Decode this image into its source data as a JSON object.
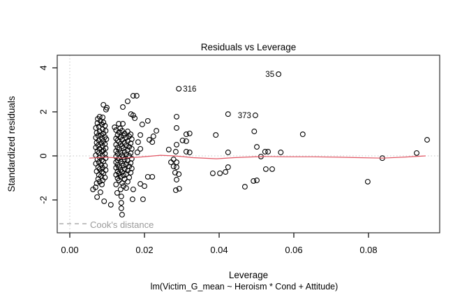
{
  "figure": {
    "title": "Residuals vs Leverage",
    "xlabel": "Leverage",
    "ylabel": "Standardized residuals",
    "sub_caption": "lm(Victim_G_mean ~ Heroism * Cond + Attitude)",
    "legend": {
      "label": "Cook's distance",
      "line_style": "dashed"
    }
  },
  "colors": {
    "background": "#ffffff",
    "box": "#2b2b2b",
    "point_stroke": "#000000",
    "smoother": "#e25563",
    "reference_dotted": "#c4c4c4",
    "legend_gray": "#9a9a9a",
    "text": "#000000"
  },
  "chart_data": {
    "type": "scatter",
    "title": "Residuals vs Leverage",
    "xlabel": "Leverage",
    "ylabel": "Standardized residuals",
    "sub_caption": "lm(Victim_G_mean ~ Heroism * Cond + Attitude)",
    "xlim": [
      -0.0034,
      0.0991
    ],
    "ylim": [
      -3.49,
      4.57
    ],
    "x_ticks": [
      "0.00",
      "0.02",
      "0.04",
      "0.06",
      "0.08"
    ],
    "x_tick_values": [
      0.0,
      0.02,
      0.04,
      0.06,
      0.08
    ],
    "y_ticks": [
      "-2",
      "0",
      "2",
      "4"
    ],
    "y_tick_values": [
      -2,
      0,
      2,
      4
    ],
    "grid": false,
    "legend_position": "bottom-left-inside",
    "reference_lines": {
      "vertical_at_x": 0,
      "horizontal_at_y": 0,
      "style": "dotted"
    },
    "labeled_points": [
      {
        "label": "35",
        "x": 0.0559,
        "y": 3.71,
        "label_side": "left"
      },
      {
        "label": "316",
        "x": 0.0292,
        "y": 3.05,
        "label_side": "right"
      },
      {
        "label": "373",
        "x": 0.0497,
        "y": 1.84,
        "label_side": "left"
      }
    ],
    "smoother": [
      [
        0.0052,
        -0.1
      ],
      [
        0.0095,
        -0.06
      ],
      [
        0.014,
        -0.1
      ],
      [
        0.019,
        -0.05
      ],
      [
        0.0243,
        0.03
      ],
      [
        0.028,
        0.0
      ],
      [
        0.033,
        -0.08
      ],
      [
        0.0393,
        -0.13
      ],
      [
        0.044,
        -0.08
      ],
      [
        0.048,
        -0.05
      ],
      [
        0.0523,
        -0.03
      ],
      [
        0.058,
        -0.04
      ],
      [
        0.065,
        -0.04
      ],
      [
        0.072,
        -0.06
      ],
      [
        0.0837,
        -0.1
      ],
      [
        0.09,
        -0.05
      ],
      [
        0.0953,
        0.0
      ]
    ],
    "points": [
      [
        0.0424,
        1.9
      ],
      [
        0.0286,
        1.78
      ],
      [
        0.0286,
        1.27
      ],
      [
        0.0494,
        1.11
      ],
      [
        0.0624,
        0.98
      ],
      [
        0.0957,
        0.73
      ],
      [
        0.0391,
        0.95
      ],
      [
        0.0312,
        0.98
      ],
      [
        0.0321,
        1.02
      ],
      [
        0.0302,
        0.7
      ],
      [
        0.0312,
        0.67
      ],
      [
        0.0286,
        0.51
      ],
      [
        0.0501,
        0.41
      ],
      [
        0.0265,
        0.29
      ],
      [
        0.0284,
        0.19
      ],
      [
        0.0312,
        0.19
      ],
      [
        0.0321,
        0.16
      ],
      [
        0.0424,
        0.16
      ],
      [
        0.0523,
        0.19
      ],
      [
        0.0531,
        0.19
      ],
      [
        0.0565,
        0.16
      ],
      [
        0.0929,
        0.13
      ],
      [
        0.0512,
        -0.03
      ],
      [
        0.0837,
        -0.1
      ],
      [
        0.0278,
        -0.16
      ],
      [
        0.0271,
        -0.29
      ],
      [
        0.0286,
        -0.29
      ],
      [
        0.0278,
        -0.48
      ],
      [
        0.0286,
        -0.51
      ],
      [
        0.0424,
        -0.51
      ],
      [
        0.0525,
        -0.6
      ],
      [
        0.0542,
        -0.6
      ],
      [
        0.0282,
        -0.76
      ],
      [
        0.0292,
        -0.83
      ],
      [
        0.0383,
        -0.79
      ],
      [
        0.0402,
        -0.79
      ],
      [
        0.0417,
        -0.73
      ],
      [
        0.0286,
        -1.08
      ],
      [
        0.0798,
        -1.17
      ],
      [
        0.0492,
        -1.14
      ],
      [
        0.0501,
        -1.11
      ],
      [
        0.0469,
        -1.4
      ],
      [
        0.0284,
        -1.56
      ],
      [
        0.0293,
        -1.49
      ],
      [
        0.017,
        2.73
      ],
      [
        0.0179,
        2.73
      ],
      [
        0.0209,
        1.59
      ],
      [
        0.0194,
        1.43
      ],
      [
        0.0232,
        1.14
      ],
      [
        0.0224,
        0.89
      ],
      [
        0.0213,
        0.73
      ],
      [
        0.0189,
        0.95
      ],
      [
        0.0183,
        0.63
      ],
      [
        0.0221,
        0.63
      ],
      [
        0.0189,
        0.32
      ],
      [
        0.0181,
        0.16
      ],
      [
        0.0209,
        -0.95
      ],
      [
        0.0221,
        -0.95
      ],
      [
        0.02,
        -1.37
      ],
      [
        0.0189,
        -1.27
      ],
      [
        0.017,
        -1.52
      ],
      [
        0.0168,
        -1.97
      ],
      [
        0.0196,
        -1.97
      ],
      [
        0.0138,
        -1.84
      ],
      [
        0.0138,
        -2.13
      ],
      [
        0.0138,
        -2.38
      ],
      [
        0.014,
        -2.67
      ],
      [
        0.0155,
        2.48
      ],
      [
        0.0142,
        2.22
      ],
      [
        0.0164,
        1.9
      ],
      [
        0.017,
        1.84
      ],
      [
        0.0174,
        1.71
      ],
      [
        0.0131,
        1.46
      ],
      [
        0.0142,
        1.46
      ],
      [
        0.012,
        1.3
      ],
      [
        0.0135,
        1.24
      ],
      [
        0.0127,
        -1.68
      ],
      [
        0.009,
        2.32
      ],
      [
        0.0097,
        2.1
      ],
      [
        0.0099,
        2.19
      ],
      [
        0.008,
        1.78
      ],
      [
        0.0088,
        1.75
      ],
      [
        0.0075,
        1.68
      ],
      [
        0.0069,
        -1.43
      ],
      [
        0.0062,
        -1.52
      ],
      [
        0.0082,
        -1.65
      ],
      [
        0.0073,
        -1.87
      ],
      [
        0.0092,
        -2.06
      ],
      [
        0.011,
        -2.22
      ],
      [
        0.0082,
        1.59
      ],
      [
        0.009,
        1.52
      ],
      [
        0.0074,
        1.49
      ],
      [
        0.0086,
        1.43
      ],
      [
        0.0094,
        1.37
      ],
      [
        0.0078,
        1.33
      ],
      [
        0.007,
        1.27
      ],
      [
        0.0088,
        1.21
      ],
      [
        0.0096,
        1.14
      ],
      [
        0.008,
        1.11
      ],
      [
        0.0072,
        1.05
      ],
      [
        0.009,
        1.02
      ],
      [
        0.0084,
        0.95
      ],
      [
        0.0076,
        0.92
      ],
      [
        0.0094,
        0.86
      ],
      [
        0.007,
        0.83
      ],
      [
        0.0086,
        0.79
      ],
      [
        0.0098,
        0.76
      ],
      [
        0.0078,
        0.7
      ],
      [
        0.009,
        0.67
      ],
      [
        0.0072,
        0.6
      ],
      [
        0.0084,
        0.57
      ],
      [
        0.0094,
        0.54
      ],
      [
        0.0076,
        0.48
      ],
      [
        0.0088,
        0.44
      ],
      [
        0.007,
        0.38
      ],
      [
        0.0096,
        0.35
      ],
      [
        0.008,
        0.32
      ],
      [
        0.009,
        0.25
      ],
      [
        0.0074,
        0.22
      ],
      [
        0.0086,
        0.19
      ],
      [
        0.0078,
        0.13
      ],
      [
        0.0094,
        0.1
      ],
      [
        0.007,
        0.03
      ],
      [
        0.0088,
        0.0
      ],
      [
        0.008,
        -0.06
      ],
      [
        0.0096,
        -0.1
      ],
      [
        0.0074,
        -0.16
      ],
      [
        0.0086,
        -0.19
      ],
      [
        0.009,
        -0.25
      ],
      [
        0.0078,
        -0.29
      ],
      [
        0.007,
        -0.35
      ],
      [
        0.0084,
        -0.41
      ],
      [
        0.0094,
        -0.44
      ],
      [
        0.0076,
        -0.51
      ],
      [
        0.0088,
        -0.54
      ],
      [
        0.008,
        -0.6
      ],
      [
        0.0096,
        -0.64
      ],
      [
        0.0072,
        -0.7
      ],
      [
        0.0086,
        -0.73
      ],
      [
        0.009,
        -0.79
      ],
      [
        0.0078,
        -0.86
      ],
      [
        0.0084,
        -0.92
      ],
      [
        0.0094,
        -0.98
      ],
      [
        0.0076,
        -1.05
      ],
      [
        0.0088,
        -1.11
      ],
      [
        0.008,
        -1.17
      ],
      [
        0.0072,
        -1.24
      ],
      [
        0.0086,
        -1.3
      ],
      [
        0.0124,
        1.17
      ],
      [
        0.014,
        1.14
      ],
      [
        0.0155,
        1.11
      ],
      [
        0.0132,
        1.08
      ],
      [
        0.0147,
        1.02
      ],
      [
        0.0163,
        0.98
      ],
      [
        0.0128,
        0.95
      ],
      [
        0.0144,
        0.92
      ],
      [
        0.0159,
        0.89
      ],
      [
        0.0136,
        0.86
      ],
      [
        0.0151,
        0.83
      ],
      [
        0.0124,
        0.79
      ],
      [
        0.0166,
        0.76
      ],
      [
        0.014,
        0.73
      ],
      [
        0.0128,
        0.7
      ],
      [
        0.0155,
        0.67
      ],
      [
        0.0132,
        0.64
      ],
      [
        0.0147,
        0.6
      ],
      [
        0.0163,
        0.57
      ],
      [
        0.0136,
        0.54
      ],
      [
        0.0124,
        0.51
      ],
      [
        0.0151,
        0.48
      ],
      [
        0.014,
        0.44
      ],
      [
        0.0159,
        0.41
      ],
      [
        0.0128,
        0.38
      ],
      [
        0.0144,
        0.35
      ],
      [
        0.0166,
        0.32
      ],
      [
        0.0132,
        0.29
      ],
      [
        0.0155,
        0.25
      ],
      [
        0.0124,
        0.22
      ],
      [
        0.0147,
        0.19
      ],
      [
        0.0136,
        0.16
      ],
      [
        0.0163,
        0.13
      ],
      [
        0.0128,
        0.1
      ],
      [
        0.0151,
        0.06
      ],
      [
        0.014,
        0.03
      ],
      [
        0.0159,
        0.0
      ],
      [
        0.0124,
        -0.03
      ],
      [
        0.0144,
        -0.06
      ],
      [
        0.0132,
        -0.1
      ],
      [
        0.0166,
        -0.13
      ],
      [
        0.0147,
        -0.16
      ],
      [
        0.0128,
        -0.19
      ],
      [
        0.0155,
        -0.22
      ],
      [
        0.0136,
        -0.25
      ],
      [
        0.0124,
        -0.29
      ],
      [
        0.0163,
        -0.32
      ],
      [
        0.014,
        -0.35
      ],
      [
        0.0151,
        -0.38
      ],
      [
        0.0128,
        -0.41
      ],
      [
        0.0144,
        -0.44
      ],
      [
        0.0159,
        -0.48
      ],
      [
        0.0132,
        -0.51
      ],
      [
        0.0124,
        -0.54
      ],
      [
        0.0166,
        -0.57
      ],
      [
        0.0147,
        -0.6
      ],
      [
        0.0136,
        -0.64
      ],
      [
        0.0155,
        -0.67
      ],
      [
        0.0128,
        -0.7
      ],
      [
        0.014,
        -0.73
      ],
      [
        0.0163,
        -0.76
      ],
      [
        0.0132,
        -0.79
      ],
      [
        0.0151,
        -0.83
      ],
      [
        0.0124,
        -0.86
      ],
      [
        0.0144,
        -0.89
      ],
      [
        0.0136,
        -0.95
      ],
      [
        0.0159,
        -0.98
      ],
      [
        0.0128,
        -1.02
      ],
      [
        0.0147,
        -1.05
      ],
      [
        0.0132,
        -1.11
      ],
      [
        0.0155,
        -1.17
      ],
      [
        0.014,
        -1.24
      ],
      [
        0.0124,
        -1.3
      ],
      [
        0.0144,
        -1.37
      ],
      [
        0.0151,
        -1.46
      ],
      [
        0.0136,
        -1.52
      ]
    ]
  }
}
